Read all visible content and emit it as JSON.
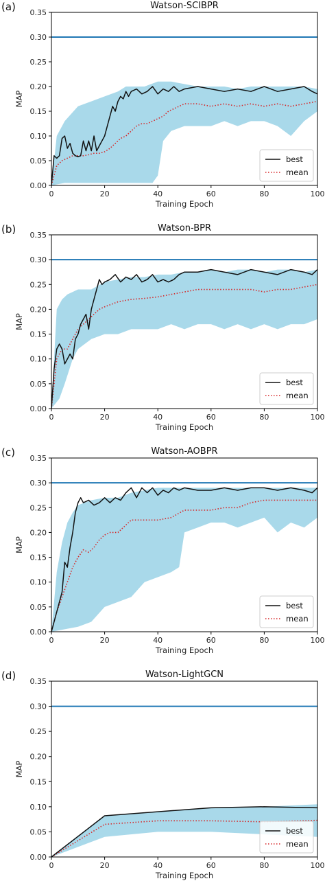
{
  "figure": {
    "colors": {
      "band": "#a9d9ea",
      "reference": "#1f77b4",
      "best": "#111111",
      "mean": "#d62728",
      "axis": "#000000"
    }
  },
  "chart_data": [
    {
      "type": "line",
      "panel_label": "(a)",
      "title": "Watson-SCIBPR",
      "xlabel": "Training Epoch",
      "ylabel": "MAP",
      "xlim": [
        0,
        100
      ],
      "ylim": [
        0,
        0.35
      ],
      "xticks": [
        "0",
        "20",
        "40",
        "60",
        "80",
        "100"
      ],
      "yticks": [
        "0.00",
        "0.05",
        "0.10",
        "0.15",
        "0.20",
        "0.25",
        "0.30",
        "0.35"
      ],
      "reference_line": 0.3,
      "legend": {
        "position": "lower right",
        "entries": [
          "best",
          "mean"
        ]
      },
      "series": [
        {
          "name": "best",
          "style": "solid",
          "x": [
            0,
            1,
            2,
            3,
            4,
            5,
            6,
            7,
            8,
            9,
            10,
            11,
            12,
            13,
            14,
            15,
            16,
            17,
            18,
            19,
            20,
            21,
            22,
            23,
            24,
            25,
            26,
            27,
            28,
            29,
            30,
            32,
            34,
            36,
            38,
            40,
            42,
            44,
            46,
            48,
            50,
            55,
            60,
            65,
            70,
            75,
            80,
            85,
            90,
            95,
            98,
            100
          ],
          "y": [
            0.0,
            0.06,
            0.055,
            0.06,
            0.095,
            0.1,
            0.075,
            0.085,
            0.065,
            0.06,
            0.058,
            0.06,
            0.09,
            0.07,
            0.09,
            0.07,
            0.1,
            0.07,
            0.08,
            0.09,
            0.1,
            0.12,
            0.14,
            0.16,
            0.15,
            0.17,
            0.18,
            0.175,
            0.19,
            0.18,
            0.19,
            0.195,
            0.185,
            0.19,
            0.2,
            0.185,
            0.195,
            0.19,
            0.2,
            0.19,
            0.195,
            0.2,
            0.195,
            0.19,
            0.195,
            0.19,
            0.2,
            0.19,
            0.195,
            0.2,
            0.19,
            0.185
          ]
        },
        {
          "name": "mean",
          "style": "dotted",
          "x": [
            0,
            2,
            4,
            6,
            8,
            10,
            12,
            14,
            16,
            18,
            20,
            22,
            24,
            26,
            28,
            30,
            32,
            34,
            36,
            38,
            40,
            42,
            44,
            46,
            48,
            50,
            55,
            60,
            65,
            70,
            75,
            80,
            85,
            90,
            95,
            100
          ],
          "y": [
            0.0,
            0.04,
            0.05,
            0.055,
            0.06,
            0.06,
            0.06,
            0.062,
            0.065,
            0.065,
            0.068,
            0.075,
            0.085,
            0.095,
            0.1,
            0.11,
            0.12,
            0.125,
            0.125,
            0.13,
            0.135,
            0.14,
            0.15,
            0.155,
            0.16,
            0.165,
            0.165,
            0.16,
            0.165,
            0.16,
            0.165,
            0.16,
            0.165,
            0.16,
            0.165,
            0.17
          ]
        },
        {
          "name": "range_upper",
          "x": [
            0,
            2,
            5,
            10,
            15,
            20,
            25,
            28,
            30,
            35,
            40,
            45,
            50,
            55,
            60,
            65,
            70,
            75,
            80,
            85,
            90,
            95,
            100
          ],
          "y": [
            0.0,
            0.1,
            0.13,
            0.16,
            0.17,
            0.18,
            0.19,
            0.2,
            0.2,
            0.2,
            0.21,
            0.21,
            0.205,
            0.2,
            0.2,
            0.2,
            0.195,
            0.2,
            0.2,
            0.2,
            0.2,
            0.2,
            0.195
          ]
        },
        {
          "name": "range_lower",
          "x": [
            0,
            5,
            10,
            15,
            20,
            25,
            30,
            35,
            38,
            40,
            42,
            45,
            50,
            55,
            60,
            65,
            70,
            75,
            80,
            85,
            90,
            95,
            100
          ],
          "y": [
            0.0,
            0.005,
            0.005,
            0.005,
            0.005,
            0.005,
            0.005,
            0.005,
            0.005,
            0.02,
            0.09,
            0.11,
            0.12,
            0.12,
            0.12,
            0.13,
            0.12,
            0.13,
            0.13,
            0.12,
            0.1,
            0.13,
            0.15
          ]
        }
      ]
    },
    {
      "type": "line",
      "panel_label": "(b)",
      "title": "Watson-BPR",
      "xlabel": "Training Epoch",
      "ylabel": "MAP",
      "xlim": [
        0,
        100
      ],
      "ylim": [
        0,
        0.35
      ],
      "xticks": [
        "0",
        "20",
        "40",
        "60",
        "80",
        "100"
      ],
      "yticks": [
        "0.00",
        "0.05",
        "0.10",
        "0.15",
        "0.20",
        "0.25",
        "0.30",
        "0.35"
      ],
      "reference_line": 0.3,
      "legend": {
        "position": "lower right",
        "entries": [
          "best",
          "mean"
        ]
      },
      "series": [
        {
          "name": "best",
          "style": "solid",
          "x": [
            0,
            1,
            2,
            3,
            4,
            5,
            6,
            7,
            8,
            9,
            10,
            11,
            12,
            13,
            14,
            15,
            16,
            17,
            18,
            19,
            20,
            22,
            24,
            26,
            28,
            30,
            32,
            34,
            36,
            38,
            40,
            42,
            44,
            46,
            48,
            50,
            55,
            60,
            65,
            70,
            75,
            80,
            85,
            90,
            95,
            98,
            100
          ],
          "y": [
            0.0,
            0.08,
            0.12,
            0.13,
            0.12,
            0.09,
            0.1,
            0.11,
            0.1,
            0.14,
            0.15,
            0.17,
            0.18,
            0.19,
            0.16,
            0.2,
            0.22,
            0.24,
            0.26,
            0.25,
            0.255,
            0.26,
            0.27,
            0.255,
            0.265,
            0.26,
            0.27,
            0.255,
            0.26,
            0.27,
            0.255,
            0.26,
            0.255,
            0.26,
            0.27,
            0.275,
            0.275,
            0.28,
            0.275,
            0.27,
            0.28,
            0.275,
            0.27,
            0.28,
            0.275,
            0.27,
            0.28
          ]
        },
        {
          "name": "mean",
          "style": "dotted",
          "x": [
            0,
            2,
            4,
            6,
            8,
            10,
            12,
            14,
            16,
            18,
            20,
            25,
            30,
            35,
            40,
            45,
            50,
            55,
            60,
            65,
            70,
            75,
            80,
            85,
            90,
            95,
            100
          ],
          "y": [
            0.0,
            0.1,
            0.12,
            0.12,
            0.14,
            0.16,
            0.17,
            0.18,
            0.19,
            0.2,
            0.205,
            0.215,
            0.22,
            0.222,
            0.225,
            0.23,
            0.235,
            0.24,
            0.24,
            0.24,
            0.24,
            0.24,
            0.235,
            0.24,
            0.24,
            0.245,
            0.25
          ]
        },
        {
          "name": "range_upper",
          "x": [
            0,
            2,
            4,
            6,
            10,
            15,
            20,
            25,
            30,
            35,
            40,
            45,
            50,
            55,
            60,
            65,
            70,
            75,
            80,
            85,
            90,
            95,
            100
          ],
          "y": [
            0.0,
            0.2,
            0.22,
            0.23,
            0.24,
            0.24,
            0.255,
            0.26,
            0.265,
            0.265,
            0.27,
            0.27,
            0.275,
            0.275,
            0.28,
            0.275,
            0.28,
            0.28,
            0.275,
            0.28,
            0.28,
            0.275,
            0.28
          ]
        },
        {
          "name": "range_lower",
          "x": [
            0,
            3,
            5,
            8,
            10,
            15,
            20,
            25,
            30,
            35,
            40,
            45,
            50,
            55,
            60,
            65,
            70,
            75,
            80,
            85,
            90,
            95,
            100
          ],
          "y": [
            0.0,
            0.02,
            0.05,
            0.1,
            0.12,
            0.14,
            0.15,
            0.15,
            0.16,
            0.16,
            0.16,
            0.17,
            0.16,
            0.17,
            0.17,
            0.16,
            0.17,
            0.16,
            0.17,
            0.16,
            0.17,
            0.17,
            0.18
          ]
        }
      ]
    },
    {
      "type": "line",
      "panel_label": "(c)",
      "title": "Watson-AOBPR",
      "xlabel": "Training Epoch",
      "ylabel": "MAP",
      "xlim": [
        0,
        100
      ],
      "ylim": [
        0,
        0.35
      ],
      "xticks": [
        "0",
        "20",
        "40",
        "60",
        "80",
        "100"
      ],
      "yticks": [
        "0.00",
        "0.05",
        "0.10",
        "0.15",
        "0.20",
        "0.25",
        "0.30",
        "0.35"
      ],
      "reference_line": 0.3,
      "legend": {
        "position": "lower right",
        "entries": [
          "best",
          "mean"
        ]
      },
      "series": [
        {
          "name": "best",
          "style": "solid",
          "x": [
            0,
            2,
            4,
            5,
            6,
            7,
            8,
            9,
            10,
            11,
            12,
            14,
            16,
            18,
            20,
            22,
            24,
            26,
            28,
            30,
            32,
            34,
            36,
            38,
            40,
            42,
            44,
            46,
            48,
            50,
            55,
            60,
            65,
            70,
            75,
            80,
            85,
            90,
            95,
            98,
            100
          ],
          "y": [
            0.0,
            0.04,
            0.08,
            0.14,
            0.13,
            0.17,
            0.2,
            0.24,
            0.26,
            0.27,
            0.26,
            0.265,
            0.255,
            0.26,
            0.27,
            0.26,
            0.27,
            0.265,
            0.28,
            0.29,
            0.27,
            0.29,
            0.28,
            0.29,
            0.275,
            0.285,
            0.28,
            0.29,
            0.285,
            0.29,
            0.285,
            0.285,
            0.29,
            0.285,
            0.29,
            0.29,
            0.285,
            0.29,
            0.285,
            0.28,
            0.29
          ]
        },
        {
          "name": "mean",
          "style": "dotted",
          "x": [
            0,
            2,
            4,
            6,
            8,
            10,
            12,
            14,
            16,
            18,
            20,
            22,
            25,
            30,
            35,
            40,
            45,
            50,
            55,
            60,
            65,
            70,
            75,
            80,
            85,
            90,
            95,
            100
          ],
          "y": [
            0.0,
            0.04,
            0.07,
            0.1,
            0.13,
            0.15,
            0.165,
            0.16,
            0.17,
            0.185,
            0.195,
            0.2,
            0.2,
            0.225,
            0.225,
            0.225,
            0.23,
            0.245,
            0.245,
            0.245,
            0.25,
            0.25,
            0.26,
            0.265,
            0.265,
            0.265,
            0.265,
            0.265
          ]
        },
        {
          "name": "range_upper",
          "x": [
            0,
            2,
            4,
            6,
            8,
            10,
            15,
            20,
            25,
            30,
            35,
            40,
            45,
            50,
            55,
            60,
            65,
            70,
            75,
            80,
            85,
            90,
            95,
            100
          ],
          "y": [
            0.0,
            0.12,
            0.18,
            0.22,
            0.24,
            0.255,
            0.265,
            0.27,
            0.27,
            0.28,
            0.285,
            0.29,
            0.29,
            0.29,
            0.29,
            0.29,
            0.29,
            0.29,
            0.29,
            0.29,
            0.29,
            0.29,
            0.29,
            0.29
          ]
        },
        {
          "name": "range_lower",
          "x": [
            0,
            5,
            10,
            15,
            20,
            25,
            30,
            35,
            40,
            45,
            48,
            50,
            55,
            60,
            65,
            70,
            75,
            80,
            85,
            90,
            95,
            100
          ],
          "y": [
            0.0,
            0.005,
            0.01,
            0.02,
            0.05,
            0.06,
            0.07,
            0.1,
            0.11,
            0.12,
            0.13,
            0.2,
            0.21,
            0.22,
            0.22,
            0.21,
            0.22,
            0.23,
            0.2,
            0.22,
            0.21,
            0.23
          ]
        }
      ]
    },
    {
      "type": "line",
      "panel_label": "(d)",
      "title": "Watson-LightGCN",
      "xlabel": "Training Epoch",
      "ylabel": "MAP",
      "xlim": [
        0,
        100
      ],
      "ylim": [
        0,
        0.35
      ],
      "xticks": [
        "0",
        "20",
        "40",
        "60",
        "80",
        "100"
      ],
      "yticks": [
        "0.00",
        "0.05",
        "0.10",
        "0.15",
        "0.20",
        "0.25",
        "0.30",
        "0.35"
      ],
      "reference_line": 0.3,
      "legend": {
        "position": "lower right",
        "entries": [
          "best",
          "mean"
        ]
      },
      "series": [
        {
          "name": "best",
          "style": "solid",
          "x": [
            0,
            20,
            40,
            60,
            80,
            100
          ],
          "y": [
            0.0,
            0.082,
            0.09,
            0.098,
            0.1,
            0.098
          ]
        },
        {
          "name": "mean",
          "style": "dotted",
          "x": [
            0,
            20,
            40,
            60,
            80,
            100
          ],
          "y": [
            0.0,
            0.065,
            0.072,
            0.072,
            0.07,
            0.073
          ]
        },
        {
          "name": "range_upper",
          "x": [
            0,
            20,
            40,
            60,
            80,
            100
          ],
          "y": [
            0.0,
            0.082,
            0.09,
            0.098,
            0.1,
            0.105
          ]
        },
        {
          "name": "range_lower",
          "x": [
            0,
            20,
            40,
            60,
            80,
            100
          ],
          "y": [
            0.0,
            0.04,
            0.05,
            0.05,
            0.045,
            0.04
          ]
        }
      ]
    }
  ]
}
